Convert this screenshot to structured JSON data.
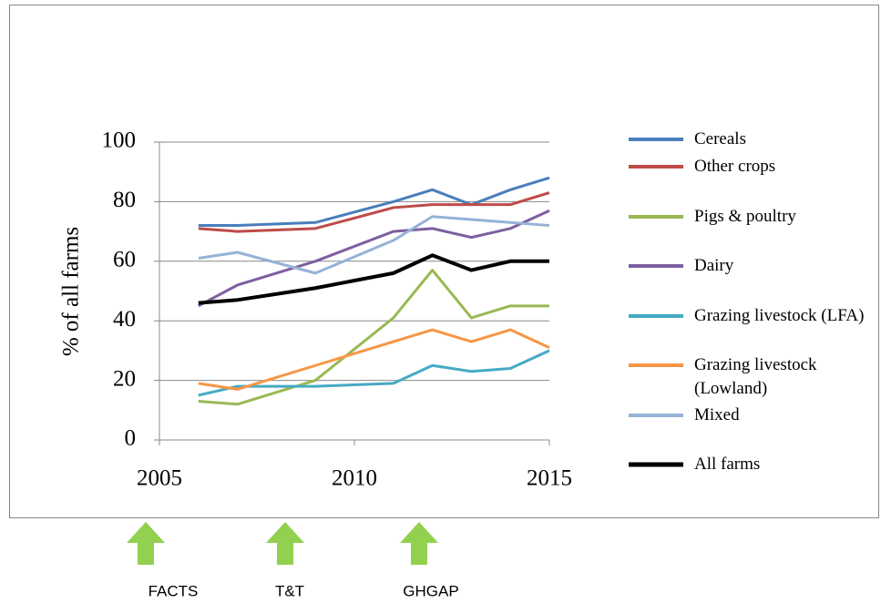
{
  "chart_data": {
    "type": "line",
    "y_label": "% of all farms",
    "x": [
      2006,
      2007,
      2009,
      2011,
      2012,
      2013,
      2014,
      2015
    ],
    "xlim": [
      2005,
      2015
    ],
    "xticks": [
      2005,
      2010,
      2015
    ],
    "ylim": [
      0,
      100
    ],
    "yticks": [
      0,
      20,
      40,
      60,
      80,
      100
    ],
    "grid": true,
    "legend": "right",
    "series": [
      {
        "name": "Cereals",
        "color": "#4a7ebb",
        "values": [
          72,
          72,
          73,
          80,
          84,
          79,
          84,
          88
        ]
      },
      {
        "name": "Other crops",
        "color": "#be4b48",
        "values": [
          71,
          70,
          71,
          78,
          79,
          79,
          79,
          83
        ]
      },
      {
        "name": "Pigs & poultry",
        "color": "#98b954",
        "values": [
          13,
          12,
          20,
          41,
          57,
          41,
          45,
          45
        ]
      },
      {
        "name": "Dairy",
        "color": "#7d5fa0",
        "values": [
          45,
          52,
          60,
          70,
          71,
          68,
          71,
          77
        ]
      },
      {
        "name": "Grazing livestock (LFA)",
        "color": "#46aac5",
        "values": [
          15,
          18,
          18,
          19,
          25,
          23,
          24,
          30
        ]
      },
      {
        "name": "Grazing livestock (Lowland)",
        "color": "#f79646",
        "values": [
          19,
          17,
          25,
          33,
          37,
          33,
          37,
          31
        ]
      },
      {
        "name": "Mixed",
        "color": "#95b3d7",
        "values": [
          61,
          63,
          56,
          67,
          75,
          74,
          73,
          72
        ]
      },
      {
        "name": "All farms",
        "color": "#000000",
        "values": [
          46,
          47,
          51,
          56,
          62,
          57,
          60,
          60
        ]
      }
    ],
    "annotations": [
      "FACTS",
      "T&T",
      "GHGAP"
    ]
  }
}
